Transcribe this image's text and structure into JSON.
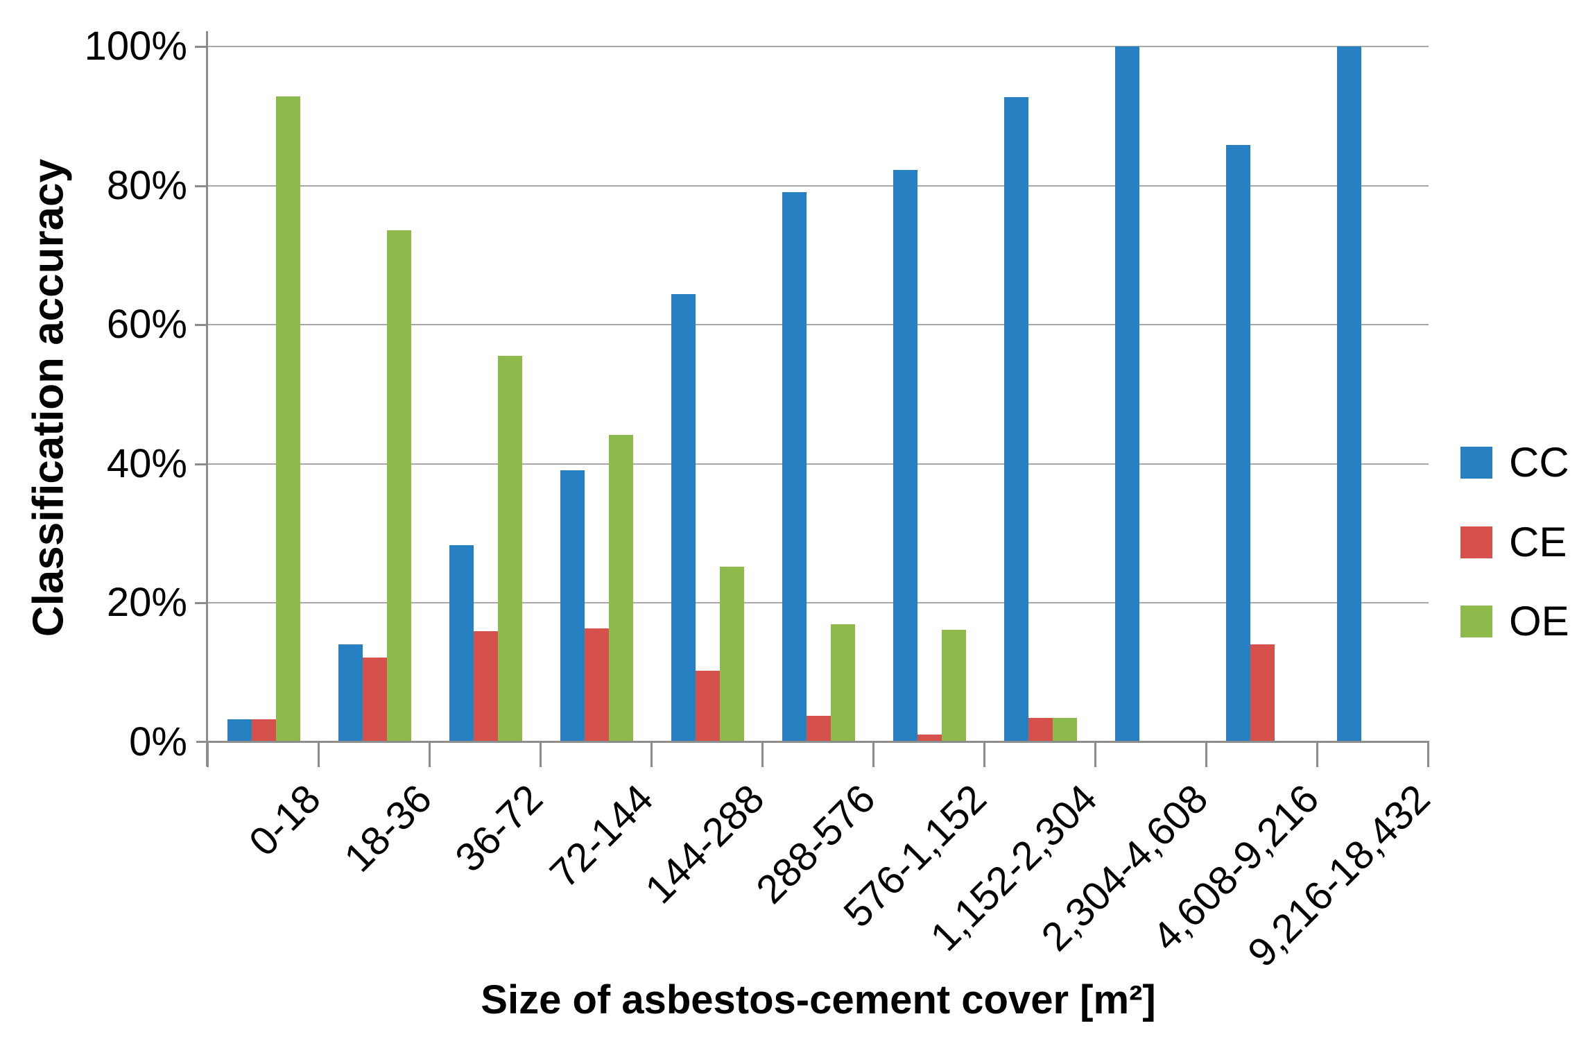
{
  "chart": {
    "y_axis_title": "Classification accuracy",
    "x_axis_title": "Size of asbestos-cement cover [m²]",
    "y_ticks": [
      "0%",
      "20%",
      "40%",
      "60%",
      "80%",
      "100%"
    ],
    "colors": {
      "cc_blue": "#2680c2",
      "ce_red": "#d6504c",
      "oe_green": "#8cbb4c",
      "gridline_gray": "#a8a8a8",
      "axis_gray": "#8c8c8c"
    }
  },
  "chart_data": {
    "type": "bar",
    "title": "",
    "xlabel": "Size of asbestos-cement cover [m²]",
    "ylabel": "Classification accuracy",
    "ylim": [
      0,
      100
    ],
    "grid": true,
    "legend_position": "right",
    "categories": [
      "0-18",
      "18-36",
      "36-72",
      "72-144",
      "144-288",
      "288-576",
      "576-1,152",
      "1,152-2,304",
      "2,304-4,608",
      "4,608-9,216",
      "9,216-18,432"
    ],
    "series": [
      {
        "name": "CC",
        "color": "#2680c2",
        "values": [
          3.3,
          14.1,
          28.3,
          39.1,
          64.4,
          79.1,
          82.3,
          92.7,
          100,
          85.8,
          100
        ]
      },
      {
        "name": "CE",
        "color": "#d6504c",
        "values": [
          3.3,
          12.2,
          16.0,
          16.4,
          10.3,
          3.8,
          1.1,
          3.5,
          0,
          14.1,
          0
        ]
      },
      {
        "name": "OE",
        "color": "#8cbb4c",
        "values": [
          92.8,
          73.6,
          55.5,
          44.2,
          25.2,
          16.9,
          16.2,
          3.5,
          0,
          0,
          0
        ]
      }
    ]
  }
}
